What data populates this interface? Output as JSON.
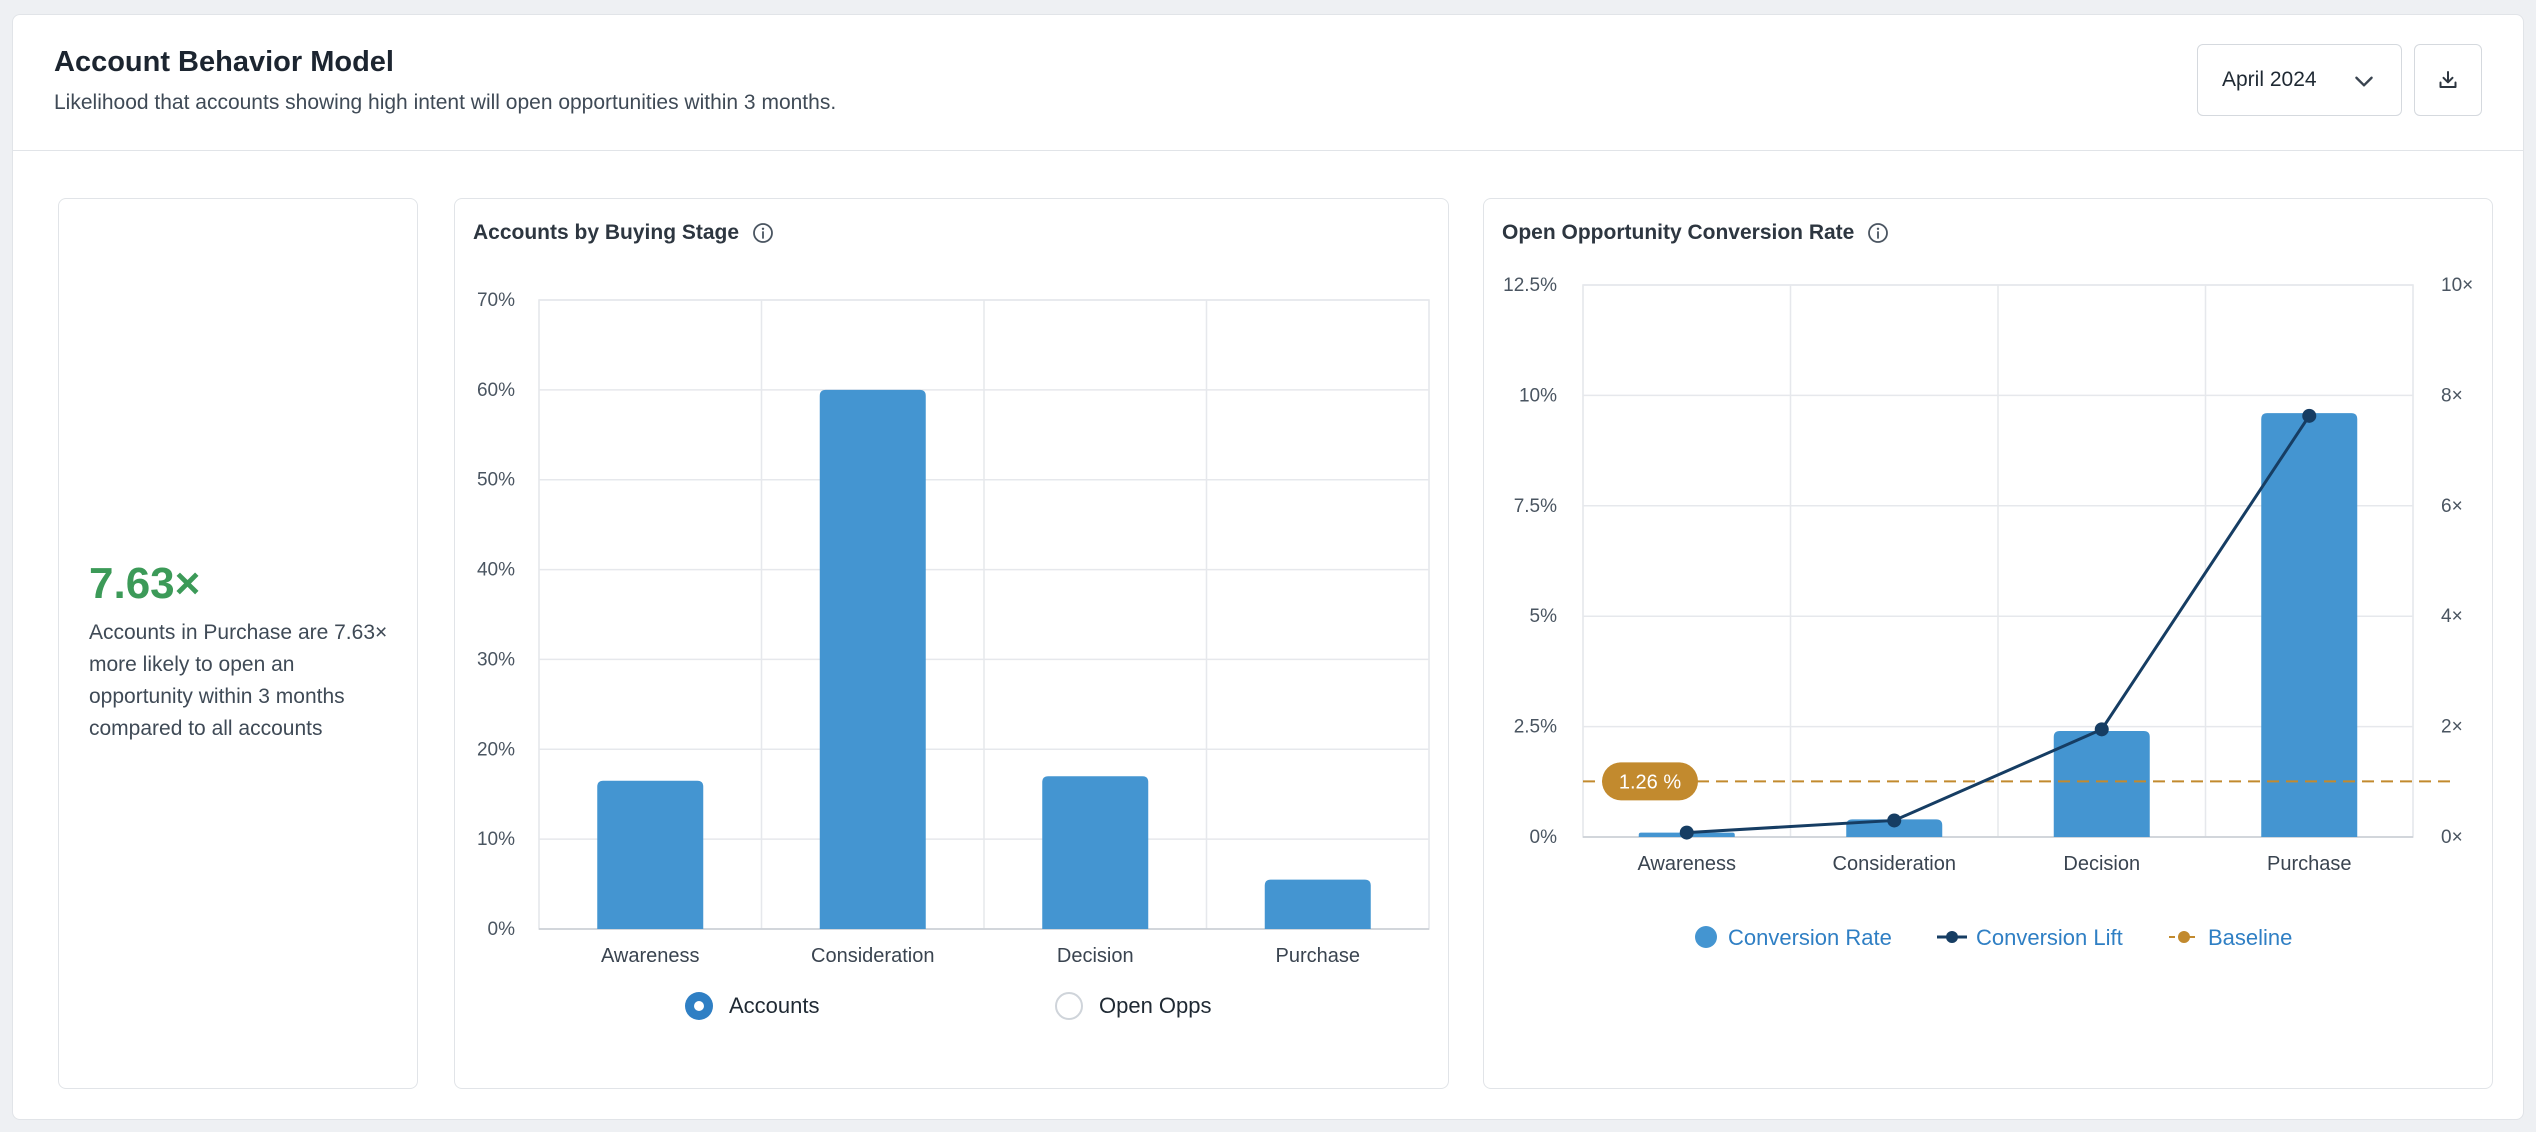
{
  "header": {
    "title": "Account Behavior Model",
    "subtitle": "Likelihood that accounts showing high intent will open opportunities within 3 months.",
    "month": "April 2024",
    "icons": {
      "dropdown": "chevron-down-icon",
      "download": "download-icon"
    }
  },
  "stat": {
    "value": "7.63×",
    "description": "Accounts in Purchase are 7.63× more likely to open an opportunity within 3 months compared to all accounts"
  },
  "colors": {
    "bar": "#4495d1",
    "line": "#163d63",
    "baseline": "#c28a2e",
    "stat": "#3c9a58",
    "legend_text": "#2f7fc4"
  },
  "stage_panel": {
    "title": "Accounts by Buying Stage",
    "toggle": {
      "options": [
        "Accounts",
        "Open Opps"
      ],
      "selected": "Accounts"
    }
  },
  "conversion_panel": {
    "title": "Open Opportunity Conversion Rate",
    "baseline_label": "1.26 %",
    "legend": [
      "Conversion Rate",
      "Conversion Lift",
      "Baseline"
    ]
  },
  "chart_data": [
    {
      "type": "bar",
      "title": "Accounts by Buying Stage",
      "categories": [
        "Awareness",
        "Consideration",
        "Decision",
        "Purchase"
      ],
      "values": [
        16.5,
        60,
        17,
        5.5
      ],
      "ylim": [
        0,
        70
      ],
      "yticks": [
        "0%",
        "10%",
        "20%",
        "30%",
        "40%",
        "50%",
        "60%",
        "70%"
      ],
      "grid": true
    },
    {
      "type": "bar",
      "title": "Open Opportunity Conversion Rate",
      "categories": [
        "Awareness",
        "Consideration",
        "Decision",
        "Purchase"
      ],
      "series": [
        {
          "name": "Conversion Rate",
          "type": "bar",
          "axis": "left",
          "values": [
            0.1,
            0.4,
            2.4,
            9.6
          ]
        },
        {
          "name": "Conversion Lift",
          "type": "line",
          "axis": "right",
          "values": [
            0.08,
            0.3,
            1.95,
            7.63
          ]
        }
      ],
      "baseline": {
        "name": "Baseline",
        "value": 1.26
      },
      "ylim": [
        0,
        12.5
      ],
      "yticks": [
        "0%",
        "2.5%",
        "5%",
        "7.5%",
        "10%",
        "12.5%"
      ],
      "y2lim": [
        0,
        10
      ],
      "y2ticks": [
        "0×",
        "2×",
        "4×",
        "6×",
        "8×",
        "10×"
      ],
      "grid": true
    }
  ]
}
